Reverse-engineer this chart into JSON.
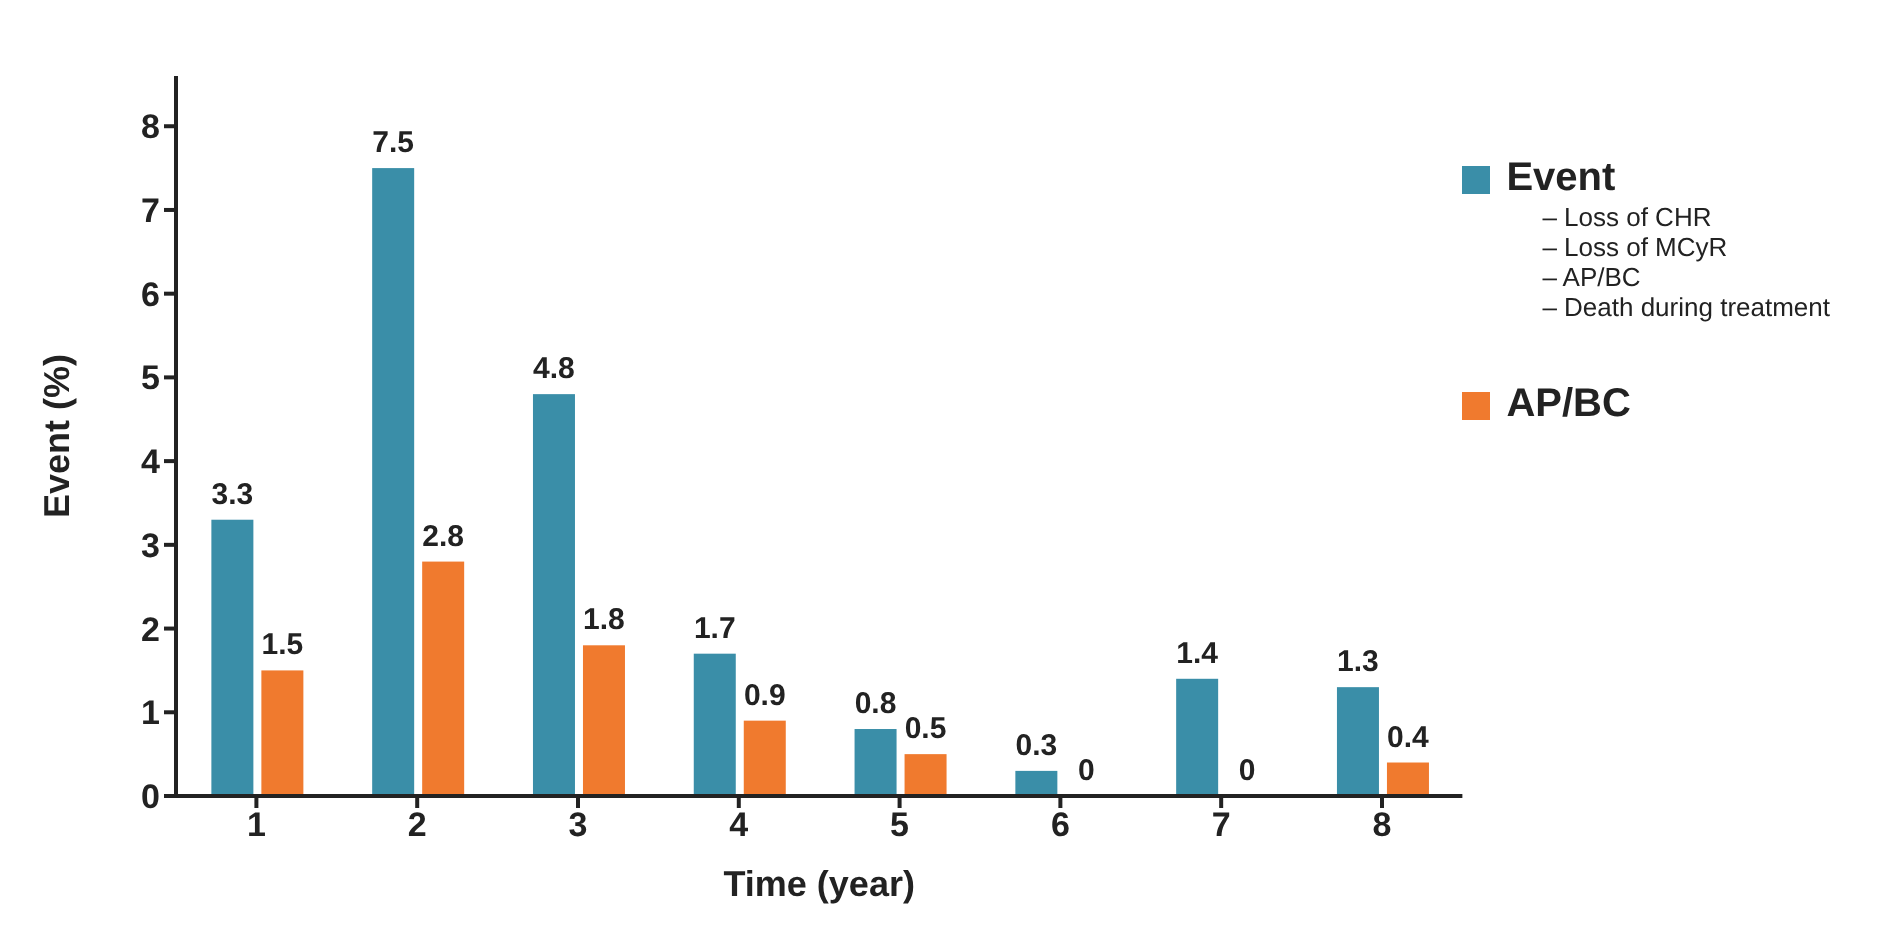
{
  "chart_data": {
    "type": "bar",
    "xlabel": "Time (year)",
    "ylabel": "Event (%)",
    "categories": [
      "1",
      "2",
      "3",
      "4",
      "5",
      "6",
      "7",
      "8"
    ],
    "series": [
      {
        "name": "Event",
        "color": "#3a8ea8",
        "values": [
          3.3,
          7.5,
          4.8,
          1.7,
          0.8,
          0.3,
          1.4,
          1.3
        ]
      },
      {
        "name": "AP/BC",
        "color": "#f07a2e",
        "values": [
          1.5,
          2.8,
          1.8,
          0.9,
          0.5,
          0,
          0,
          0.4
        ]
      }
    ],
    "ylim": [
      0,
      8.6
    ],
    "yticks": [
      0,
      1,
      2,
      3,
      4,
      5,
      6,
      7,
      8
    ],
    "grid": false,
    "data_labels": true,
    "legend": "top right",
    "annotations": [
      "– Loss of CHR",
      "– Loss of MCyR",
      "– AP/BC",
      "– Death during treatment"
    ]
  }
}
